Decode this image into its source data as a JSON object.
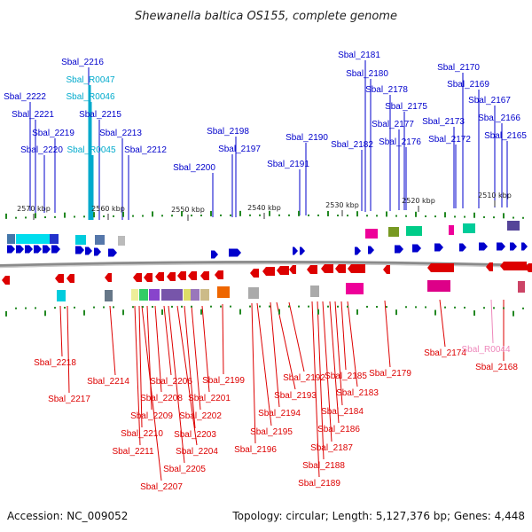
{
  "title": "Shewanella baltica OS155, complete genome",
  "accession": "Accession: NC_009052",
  "summary": "Topology: circular; Length: 5,127,376 bp; Genes: 4,448",
  "colors": {
    "forward": "#0000cc",
    "reverse": "#dd0000",
    "rna": "#00aacc",
    "pseudo": "#ee88bb",
    "backbone": "#888888"
  },
  "ticks": [
    "2570 kbp",
    "2560 kbp",
    "2550 kbp",
    "2540 kbp",
    "2530 kbp",
    "2520 kbp",
    "2510 kbp"
  ],
  "top_labels": [
    "Sbal_2216",
    "Sbal_R0047",
    "Sbal_R0046",
    "Sbal_2215",
    "Sbal_2222",
    "Sbal_2221",
    "Sbal_2219",
    "Sbal_2213",
    "Sbal_2220",
    "Sbal_R0045",
    "Sbal_2212",
    "Sbal_2198",
    "Sbal_2197",
    "Sbal_2200",
    "Sbal_2190",
    "Sbal_2191",
    "Sbal_2181",
    "Sbal_2180",
    "Sbal_2178",
    "Sbal_2175",
    "Sbal_2177",
    "Sbal_2182",
    "Sbal_2176",
    "Sbal_2170",
    "Sbal_2169",
    "Sbal_2167",
    "Sbal_2173",
    "Sbal_2166",
    "Sbal_2172",
    "Sbal_2165"
  ],
  "bottom_labels": [
    "Sbal_2218",
    "Sbal_2217",
    "Sbal_2214",
    "Sbal_2206",
    "Sbal_2208",
    "Sbal_2209",
    "Sbal_2210",
    "Sbal_2211",
    "Sbal_2207",
    "Sbal_2205",
    "Sbal_2204",
    "Sbal_2203",
    "Sbal_2202",
    "Sbal_2201",
    "Sbal_2199",
    "Sbal_2196",
    "Sbal_2195",
    "Sbal_2194",
    "Sbal_2193",
    "Sbal_2192",
    "Sbal_2189",
    "Sbal_2188",
    "Sbal_2187",
    "Sbal_2186",
    "Sbal_2184",
    "Sbal_2185",
    "Sbal_2183",
    "Sbal_2179",
    "Sbal_2174",
    "Sbal_R0044",
    "Sbal_2168"
  ]
}
